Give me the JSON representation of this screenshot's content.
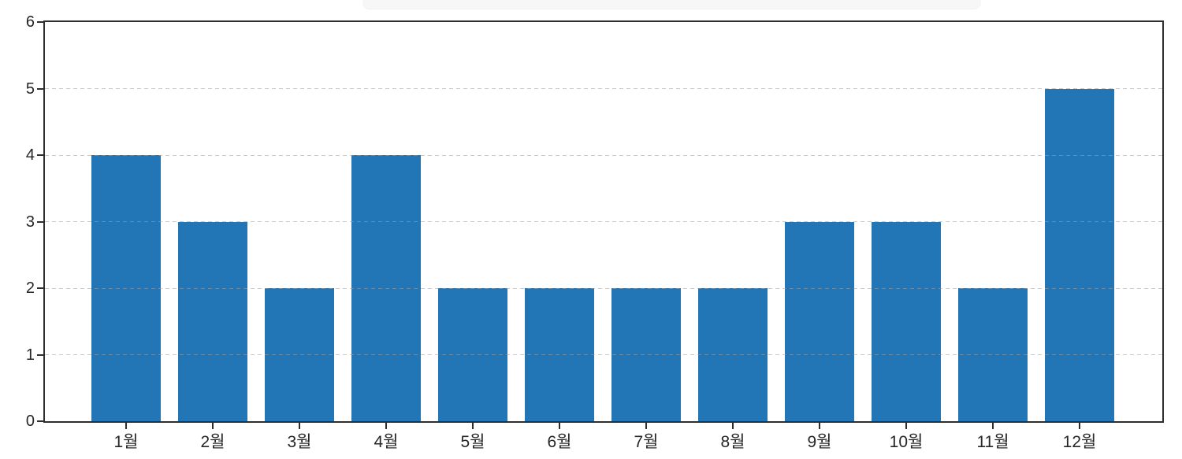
{
  "chart_data": {
    "type": "bar",
    "categories": [
      "1월",
      "2월",
      "3월",
      "4월",
      "5월",
      "6월",
      "7월",
      "8월",
      "9월",
      "10월",
      "11월",
      "12월"
    ],
    "values": [
      4,
      3,
      2,
      4,
      2,
      2,
      2,
      2,
      3,
      3,
      2,
      5
    ],
    "title": "",
    "xlabel": "",
    "ylabel": "",
    "ylim": [
      0,
      6
    ],
    "yticks": [
      0,
      1,
      2,
      3,
      4,
      5,
      6
    ],
    "ytick_labels": [
      "0",
      "1",
      "2",
      "3",
      "4",
      "5",
      "6"
    ],
    "grid": "horizontal-dashed",
    "gridlines_over_bars": true,
    "legend_position": "none",
    "bar_color": "#2276b5",
    "axis_color": "#2e2e2e",
    "gridline_color": "#c9c9c9",
    "tick_label_color": "#262626",
    "box_spines": true
  }
}
